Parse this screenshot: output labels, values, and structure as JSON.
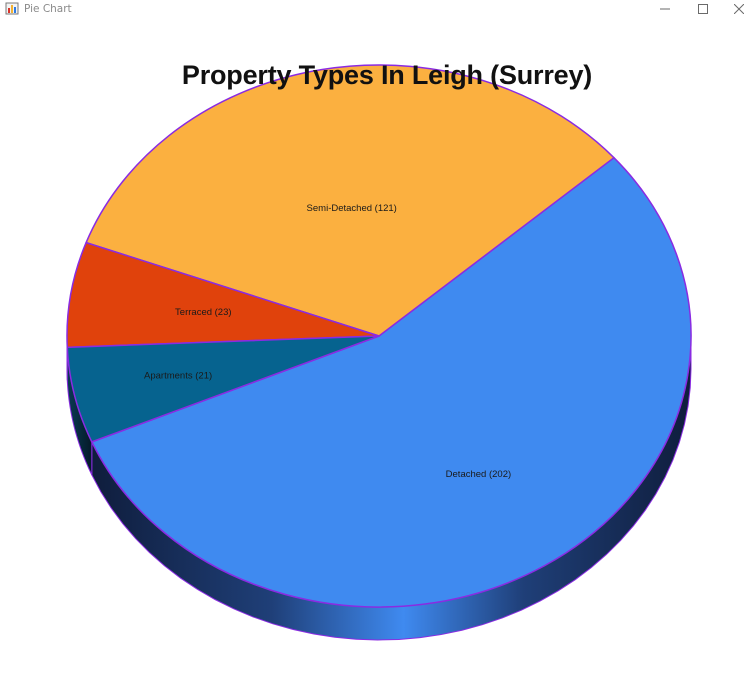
{
  "window": {
    "title": "Pie Chart",
    "icon": "chart-app-icon",
    "controls": [
      "minimize-icon",
      "maximize-icon",
      "close-icon"
    ]
  },
  "chart_data": {
    "type": "pie",
    "style": "3d",
    "title": "Property Types In Leigh (Surrey)",
    "categories": [
      "Detached",
      "Semi-Detached",
      "Terraced",
      "Apartments"
    ],
    "values": [
      202,
      121,
      23,
      21
    ],
    "labels": [
      "Detached (202)",
      "Semi-Detached (121)",
      "Terraced (23)",
      "Apartments (21)"
    ],
    "colors": [
      "#3f8af0",
      "#fbb040",
      "#e0420c",
      "#06638f"
    ],
    "outline_color": "#8a2be2",
    "legend": "none"
  }
}
